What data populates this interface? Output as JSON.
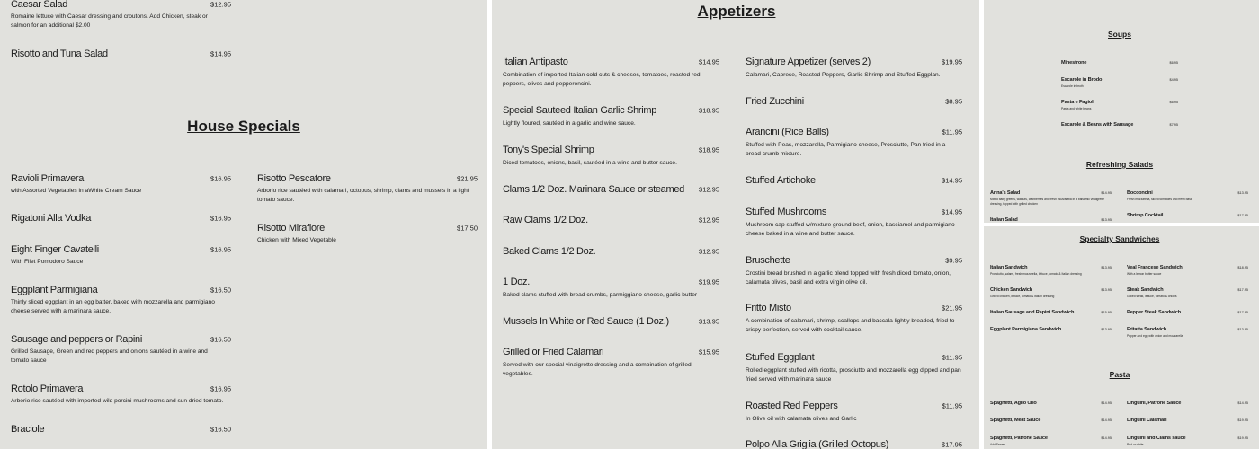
{
  "left": {
    "titles": [
      "House Specials"
    ],
    "columns": [
      {
        "items": [
          {
            "name": "Caesar Salad",
            "price": "$12.95",
            "desc": "Romaine lettuce with Caesar dressing and croutons. Add Chicken, steak or salmon for an additional $2.00"
          },
          {
            "name": "Risotto and Tuna Salad",
            "price": "$14.95",
            "desc": ""
          },
          {
            "name": "Ravioli Primavera",
            "price": "$16.95",
            "desc": "with Assorted Vegetables in aWhite Cream Sauce"
          },
          {
            "name": "Rigatoni Alla Vodka",
            "price": "$16.95",
            "desc": ""
          },
          {
            "name": "Eight Finger Cavatelli",
            "price": "$16.95",
            "desc": "With Filet Pomodoro Sauce"
          },
          {
            "name": "Eggplant Parmigiana",
            "price": "$16.50",
            "desc": "Thinly sliced eggplant in an egg batter, baked with mozzarella and parmigiano cheese served with a marinara sauce."
          },
          {
            "name": "Sausage and peppers or Rapini",
            "price": "$16.50",
            "desc": "Grilled Sausage, Green and red peppers and onions sautéed in a wine and tomato sauce"
          },
          {
            "name": "Rotolo Primavera",
            "price": "$16.95",
            "desc": "Arborio rice sautéed with imported wild porcini mushrooms and sun dried tomato."
          },
          {
            "name": "Braciole",
            "price": "$16.50",
            "desc": ""
          }
        ]
      },
      {
        "items": [
          {
            "name": "Risotto Pescatore",
            "price": "$21.95",
            "desc": "Arborio rice sautéed with calamari, octopus, shrimp, clams and mussels in a light tomato sauce."
          },
          {
            "name": "Risotto Mirafiore",
            "price": "$17.50",
            "desc": "Chicken with Mixed Vegetable"
          }
        ]
      }
    ]
  },
  "middle": {
    "titles": [
      "Appetizers"
    ],
    "columns": [
      {
        "items": [
          {
            "name": "Italian Antipasto",
            "price": "$14.95",
            "desc": "Combination of imported Italian cold cuts & cheeses, tomatoes, roasted red peppers, olives and pepperoncini."
          },
          {
            "name": "Special Sauteed Italian Garlic Shrimp",
            "price": "$18.95",
            "desc": "Lightly floured, sautéed in a garlic and wine sauce."
          },
          {
            "name": "Tony's Special Shrimp",
            "price": "$18.95",
            "desc": "Diced tomatoes, onions, basil, sautéed in a wine and butter sauce."
          },
          {
            "name": "Clams 1/2 Doz. Marinara Sauce or steamed",
            "price": "$12.95",
            "desc": ""
          },
          {
            "name": "Raw Clams 1/2 Doz.",
            "price": "$12.95",
            "desc": ""
          },
          {
            "name": "Baked Clams 1/2 Doz.",
            "price": "$12.95",
            "desc": ""
          },
          {
            "name": "1 Doz.",
            "price": "$19.95",
            "desc": "Baked clams stuffed with bread crumbs, parmiggiano cheese, garlic butter"
          },
          {
            "name": "Mussels In White or Red Sauce (1 Doz.)",
            "price": "$13.95",
            "desc": ""
          },
          {
            "name": "Grilled or Fried Calamari",
            "price": "$15.95",
            "desc": "Served with our special vinaigrette dressing and a combination of grilled vegetables."
          }
        ]
      },
      {
        "items": [
          {
            "name": "Signature Appetizer (serves 2)",
            "price": "$19.95",
            "desc": "Calamari, Caprese, Roasted Peppers, Garlic Shrimp and Stuffed Eggplan."
          },
          {
            "name": "Fried Zucchini",
            "price": "$8.95",
            "desc": ""
          },
          {
            "name": "Arancini (Rice Balls)",
            "price": "$11.95",
            "desc": "Stuffed with Peas, mozzarella, Parmigiano cheese, Prosciutto, Pan fried in a bread crumb mixture."
          },
          {
            "name": "Stuffed Artichoke",
            "price": "$14.95",
            "desc": ""
          },
          {
            "name": "Stuffed Mushrooms",
            "price": "$14.95",
            "desc": "Mushroom cap stuffed w/mixture ground beef, onion, basciamel and parmigiano cheese baked in a wine and butter sauce."
          },
          {
            "name": "Bruschette",
            "price": "$9.95",
            "desc": "Crostini bread brushed in a garlic blend topped with fresh diced tomato, onion, calamata olives, basil and extra virgin olive oil."
          },
          {
            "name": "Fritto Misto",
            "price": "$21.95",
            "desc": "A combination of calamari, shrimp, scallops and baccala lightly breaded, fried to crispy perfection, served with cocktail sauce."
          },
          {
            "name": "Stuffed Eggplant",
            "price": "$11.95",
            "desc": "Rolled eggplant stuffed with ricotta, prosciutto and mozzarella egg dipped and pan fried served with marinara sauce"
          },
          {
            "name": "Roasted Red Peppers",
            "price": "$11.95",
            "desc": "In Olive oil with calamata olives and Garlic"
          },
          {
            "name": "Polpo Alla Griglia (Grilled Octopus)",
            "price": "$17.95",
            "desc": ""
          }
        ]
      }
    ]
  },
  "right_top": {
    "titles": [
      "Soups",
      "Refreshing Salads"
    ],
    "columns": [
      {
        "items": [
          {
            "name": "Minestrone",
            "price": "$6.95",
            "desc": ""
          },
          {
            "name": "Escarole in Brodo",
            "price": "$4.95",
            "desc": "Escarole in broth"
          },
          {
            "name": "Pasta e Fagioli",
            "price": "$6.95",
            "desc": "Pasta and white beans"
          },
          {
            "name": "Escarole & Beans with Sausage",
            "price": "$7.95",
            "desc": ""
          }
        ]
      },
      {
        "items": [
          {
            "name": "Anna's Salad",
            "price": "$14.95",
            "desc": "Mixed baby greens, walnuts, cranberries and fresh mozzarella in a balsamic vinaigrette dressing, topped with grilled chicken"
          },
          {
            "name": "Italian Salad",
            "price": "$13.95",
            "desc": ""
          }
        ]
      },
      {
        "items": [
          {
            "name": "Bocconcini",
            "price": "$13.95",
            "desc": "Fresh mozzarella, sliced tomatoes and fresh basil"
          },
          {
            "name": "Shrimp Cocktail",
            "price": "$17.95",
            "desc": ""
          }
        ]
      }
    ]
  },
  "right_bottom": {
    "titles": [
      "Specialty Sandwiches",
      "Pasta"
    ],
    "columns": [
      {
        "items": [
          {
            "name": "Italian Sandwich",
            "price": "$13.95",
            "desc": "Prosciutto, salami, fresh mozzarella, lettuce, tomato & Italian dressing"
          },
          {
            "name": "Chicken Sandwich",
            "price": "$13.95",
            "desc": "Grilled chicken, lettuce, tomato & Italian dressing"
          },
          {
            "name": "Italian Sausage and Rapini Sandwich",
            "price": "$15.95",
            "desc": ""
          },
          {
            "name": "Eggplant Parmigiana Sandwich",
            "price": "$13.95",
            "desc": ""
          }
        ]
      },
      {
        "items": [
          {
            "name": "Veal Francese Sandwich",
            "price": "$18.95",
            "desc": "With a lemon butter sauce"
          },
          {
            "name": "Steak Sandwich",
            "price": "$17.95",
            "desc": "Grilled steak, lettuce, tomato & onions"
          },
          {
            "name": "Pepper Steak Sandwich",
            "price": "$17.95",
            "desc": ""
          },
          {
            "name": "Fritatta Sandwich",
            "price": "$13.95",
            "desc": "Pepper and egg with onion and mozzarella"
          }
        ]
      },
      {
        "items": [
          {
            "name": "Spaghetti, Aglio Olio",
            "price": "$14.95",
            "desc": ""
          },
          {
            "name": "Spaghetti, Meat Sauce",
            "price": "$14.95",
            "desc": ""
          },
          {
            "name": "Spaghetti, Patrone Sauce",
            "price": "$14.95",
            "desc": "Add Server"
          }
        ]
      },
      {
        "items": [
          {
            "name": "Linguini, Patrone Sauce",
            "price": "$14.95",
            "desc": ""
          },
          {
            "name": "Linguini Calamari",
            "price": "$19.95",
            "desc": ""
          },
          {
            "name": "Linguini and Clams sauce",
            "price": "$19.95",
            "desc": "Red or white"
          }
        ]
      }
    ]
  }
}
